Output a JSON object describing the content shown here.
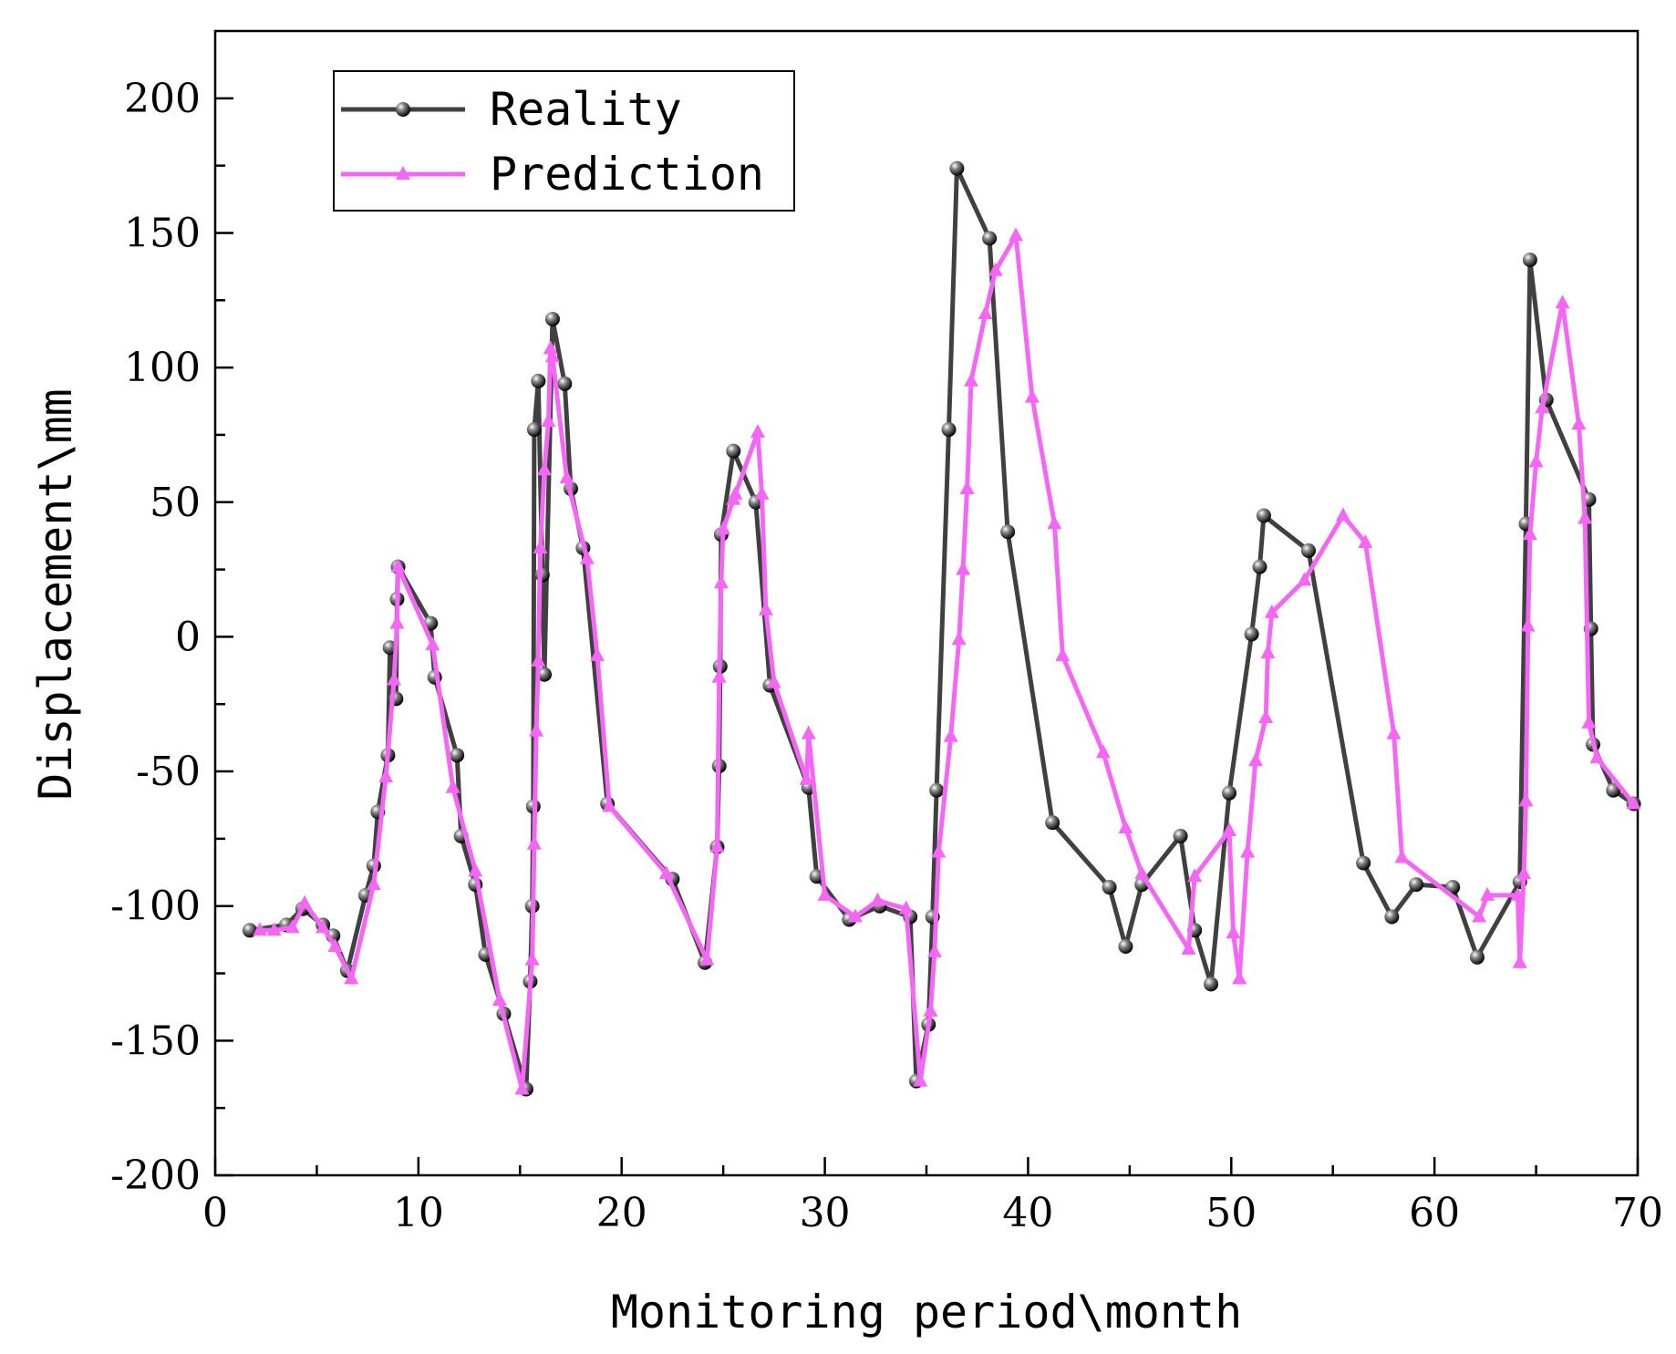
{
  "chart_data": {
    "type": "line",
    "title": "",
    "xlabel": "Monitoring period\\month",
    "ylabel": "Displacement\\mm",
    "xlim": [
      0,
      70
    ],
    "ylim": [
      -200,
      225
    ],
    "xticks": [
      0,
      10,
      20,
      30,
      40,
      50,
      60,
      70
    ],
    "yticks": [
      -200,
      -150,
      -100,
      -50,
      0,
      50,
      100,
      150,
      200
    ],
    "xtick_labels": [
      "0",
      "10",
      "20",
      "30",
      "40",
      "50",
      "60",
      "70"
    ],
    "ytick_labels": [
      "-200",
      "-150",
      "-100",
      "-50",
      "0",
      "50",
      "100",
      "150",
      "200"
    ],
    "grid": false,
    "legend_position": "top-left",
    "series": [
      {
        "name": "Reality",
        "color": "#404040",
        "marker": "sphere",
        "x": [
          1.7,
          3.5,
          4.3,
          5.3,
          5.8,
          6.5,
          7.4,
          7.8,
          8.0,
          8.5,
          8.6,
          8.9,
          8.95,
          9.0,
          10.6,
          10.8,
          11.9,
          12.1,
          12.8,
          13.3,
          14.2,
          15.3,
          15.5,
          15.6,
          15.65,
          15.7,
          15.9,
          16.1,
          16.2,
          16.6,
          17.2,
          17.5,
          18.1,
          19.3,
          22.5,
          24.1,
          24.7,
          24.8,
          24.85,
          24.9,
          25.5,
          26.6,
          27.3,
          29.2,
          29.6,
          31.2,
          32.7,
          34.2,
          34.5,
          35.1,
          35.3,
          35.5,
          36.1,
          36.5,
          38.1,
          39.0,
          41.2,
          44.0,
          44.8,
          45.6,
          47.5,
          48.2,
          49.0,
          49.9,
          51.0,
          51.4,
          51.6,
          53.8,
          56.5,
          57.9,
          59.1,
          60.9,
          62.1,
          64.2,
          64.5,
          64.7,
          65.5,
          67.6,
          67.7,
          67.8,
          68.8,
          69.8
        ],
        "y": [
          -109,
          -107,
          -101,
          -107,
          -111,
          -124,
          -96,
          -85,
          -65,
          -44,
          -4,
          -23,
          14,
          26,
          5,
          -15,
          -44,
          -74,
          -92,
          -118,
          -140,
          -168,
          -128,
          -100,
          -63,
          77,
          95,
          23,
          -14,
          118,
          94,
          55,
          33,
          -62,
          -90,
          -121,
          -78,
          -48,
          -11,
          38,
          69,
          50,
          -18,
          -56,
          -89,
          -105,
          -100,
          -104,
          -165,
          -144,
          -104,
          -57,
          77,
          174,
          148,
          39,
          -69,
          -93,
          -115,
          -92,
          -74,
          -109,
          -129,
          -58,
          1,
          26,
          45,
          32,
          -84,
          -104,
          -92,
          -93,
          -119,
          -91,
          42,
          140,
          88,
          51,
          3,
          -40,
          -57,
          -62
        ]
      },
      {
        "name": "Prediction",
        "color": "#f467f4",
        "marker": "triangle",
        "x": [
          2.2,
          2.9,
          3.8,
          4.4,
          5.3,
          5.9,
          6.7,
          7.8,
          8.4,
          8.8,
          8.95,
          9.0,
          10.7,
          11.7,
          12.8,
          14.0,
          15.1,
          15.6,
          15.7,
          15.8,
          15.9,
          16.0,
          16.2,
          16.4,
          16.5,
          16.6,
          17.3,
          18.3,
          18.8,
          19.4,
          22.2,
          24.2,
          24.7,
          24.8,
          24.9,
          25.0,
          25.5,
          25.6,
          26.7,
          26.9,
          27.1,
          27.5,
          29.1,
          29.2,
          30.0,
          31.5,
          32.6,
          34.0,
          34.7,
          35.2,
          35.4,
          35.6,
          36.2,
          36.6,
          36.8,
          37.0,
          37.2,
          37.9,
          38.4,
          39.4,
          40.2,
          41.3,
          41.7,
          43.7,
          44.8,
          45.6,
          47.9,
          48.2,
          49.9,
          50.1,
          50.4,
          50.8,
          51.2,
          51.7,
          51.8,
          52.0,
          53.6,
          55.5,
          56.6,
          58.0,
          58.4,
          62.2,
          62.6,
          64.1,
          64.2,
          64.4,
          64.5,
          64.6,
          64.7,
          65.0,
          65.3,
          66.3,
          67.1,
          67.4,
          67.6,
          68.0,
          69.8
        ],
        "y": [
          -109,
          -109,
          -108,
          -99,
          -108,
          -115,
          -127,
          -92,
          -52,
          -16,
          5,
          26,
          -3,
          -56,
          -87,
          -135,
          -168,
          -120,
          -77,
          -35,
          -9,
          33,
          62,
          80,
          107,
          104,
          59,
          29,
          -7,
          -63,
          -88,
          -120,
          -78,
          -15,
          20,
          40,
          51,
          53,
          76,
          53,
          10,
          -17,
          -53,
          -36,
          -96,
          -104,
          -98,
          -101,
          -165,
          -139,
          -117,
          -80,
          -37,
          -1,
          25,
          55,
          95,
          120,
          136,
          149,
          89,
          42,
          -7,
          -43,
          -71,
          -88,
          -116,
          -89,
          -72,
          -110,
          -127,
          -80,
          -46,
          -30,
          -6,
          9,
          21,
          45,
          35,
          -36,
          -82,
          -104,
          -96,
          -96,
          -121,
          -88,
          -61,
          4,
          38,
          65,
          85,
          124,
          79,
          44,
          -32,
          -45,
          -62
        ]
      }
    ]
  }
}
